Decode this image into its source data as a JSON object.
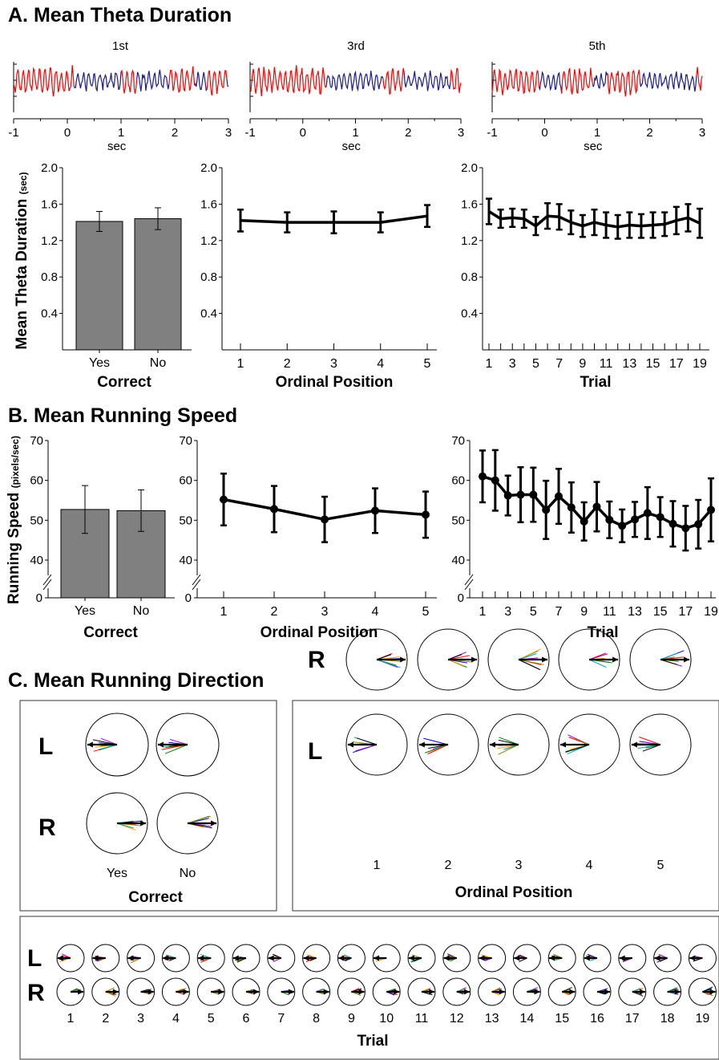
{
  "sections": {
    "a": "A. Mean Theta Duration",
    "b": "B. Mean Running Speed",
    "c": "C. Mean Running Direction"
  },
  "traces": {
    "titles": [
      "1st",
      "3rd",
      "5th"
    ],
    "xticks": [
      "-1",
      "0",
      "1",
      "2",
      "3"
    ],
    "xlabel": "sec",
    "colors": {
      "theta": "#ff0000",
      "other": "#1a1a8c"
    }
  },
  "labels": {
    "theta_ylabel": "Mean Theta Duration",
    "theta_yunit": "(sec)",
    "speed_ylabel": "Running Speed",
    "speed_yunit": "(pixels/sec)",
    "correct": "Correct",
    "ordinal": "Ordinal Position",
    "trial": "Trial",
    "yes": "Yes",
    "no": "No",
    "left": "L",
    "right": "R"
  },
  "chart_data": [
    {
      "id": "theta-correct",
      "type": "bar",
      "categories": [
        "Yes",
        "No"
      ],
      "values": [
        1.41,
        1.44
      ],
      "errors": [
        0.11,
        0.12
      ],
      "xlabel": "Correct",
      "ylabel": "Mean Theta Duration (sec)",
      "ylim": [
        0,
        2.0
      ],
      "yticks": [
        "0.4",
        "0.8",
        "1.2",
        "1.6",
        "2.0"
      ],
      "bar_color": "#808080"
    },
    {
      "id": "theta-ordinal",
      "type": "line",
      "x": [
        1,
        2,
        3,
        4,
        5
      ],
      "values": [
        1.42,
        1.4,
        1.4,
        1.4,
        1.47
      ],
      "errors": [
        0.12,
        0.11,
        0.12,
        0.11,
        0.12
      ],
      "xlabel": "Ordinal Position",
      "ylim": [
        0,
        2.0
      ],
      "yticks": [
        "0.4",
        "0.8",
        "1.2",
        "1.6",
        "2.0"
      ]
    },
    {
      "id": "theta-trial",
      "type": "line",
      "x": [
        1,
        2,
        3,
        4,
        5,
        6,
        7,
        8,
        9,
        10,
        11,
        12,
        13,
        14,
        15,
        16,
        17,
        18,
        19
      ],
      "xticklabels": [
        "1",
        "3",
        "5",
        "7",
        "9",
        "11",
        "13",
        "15",
        "17",
        "19"
      ],
      "values": [
        1.52,
        1.44,
        1.45,
        1.44,
        1.36,
        1.47,
        1.46,
        1.4,
        1.36,
        1.4,
        1.37,
        1.35,
        1.37,
        1.36,
        1.37,
        1.38,
        1.42,
        1.45,
        1.39
      ],
      "errors": [
        0.14,
        0.1,
        0.1,
        0.1,
        0.1,
        0.14,
        0.14,
        0.13,
        0.12,
        0.14,
        0.14,
        0.13,
        0.14,
        0.13,
        0.14,
        0.13,
        0.15,
        0.15,
        0.16
      ],
      "xlabel": "Trial",
      "ylim": [
        0,
        2.0
      ],
      "yticks": [
        "0.4",
        "0.8",
        "1.2",
        "1.6",
        "2.0"
      ]
    },
    {
      "id": "speed-correct",
      "type": "bar",
      "categories": [
        "Yes",
        "No"
      ],
      "values": [
        52.7,
        52.4
      ],
      "errors": [
        6.0,
        5.2
      ],
      "xlabel": "Correct",
      "ylabel": "Running Speed (pixels/sec)",
      "ylim": [
        35,
        70
      ],
      "axis_break": true,
      "yticks": [
        "40",
        "50",
        "60",
        "70"
      ],
      "zero_label": "0",
      "bar_color": "#808080"
    },
    {
      "id": "speed-ordinal",
      "type": "line",
      "x": [
        1,
        2,
        3,
        4,
        5
      ],
      "values": [
        55.2,
        52.8,
        50.2,
        52.4,
        51.4
      ],
      "errors": [
        6.5,
        5.8,
        5.7,
        5.6,
        5.8
      ],
      "xlabel": "Ordinal Position",
      "ylim": [
        35,
        70
      ],
      "axis_break": true,
      "yticks": [
        "40",
        "50",
        "60",
        "70"
      ],
      "zero_label": "0"
    },
    {
      "id": "speed-trial",
      "type": "line",
      "x": [
        1,
        2,
        3,
        4,
        5,
        6,
        7,
        8,
        9,
        10,
        11,
        12,
        13,
        14,
        15,
        16,
        17,
        18,
        19
      ],
      "xticklabels": [
        "1",
        "3",
        "5",
        "7",
        "9",
        "11",
        "13",
        "15",
        "17",
        "19"
      ],
      "values": [
        61.0,
        60.0,
        56.2,
        56.4,
        56.4,
        52.6,
        56.0,
        53.2,
        49.7,
        53.4,
        50.1,
        48.6,
        50.2,
        51.8,
        50.8,
        49.1,
        48.0,
        49.0,
        52.6
      ],
      "errors": [
        6.5,
        7.6,
        5.0,
        6.9,
        6.8,
        7.3,
        6.9,
        6.3,
        4.8,
        6.2,
        4.6,
        4.1,
        4.4,
        6.5,
        5.0,
        5.7,
        5.6,
        6.1,
        7.9
      ],
      "xlabel": "Trial",
      "ylim": [
        35,
        70
      ],
      "axis_break": true,
      "yticks": [
        "40",
        "50",
        "60",
        "70"
      ],
      "zero_label": "0"
    }
  ],
  "direction": {
    "correct_labels": [
      "Yes",
      "No"
    ],
    "ordinal_labels": [
      "1",
      "2",
      "3",
      "4",
      "5"
    ],
    "trial_labels": [
      "1",
      "2",
      "3",
      "4",
      "5",
      "6",
      "7",
      "8",
      "9",
      "10",
      "11",
      "12",
      "13",
      "14",
      "15",
      "16",
      "17",
      "18",
      "19"
    ],
    "left_direction_deg": 180,
    "right_direction_deg": 0,
    "line_colors": [
      "#ff0000",
      "#0000cc",
      "#008000",
      "#9900cc",
      "#ff9900",
      "#00aaaa",
      "#888800",
      "#000000"
    ]
  }
}
